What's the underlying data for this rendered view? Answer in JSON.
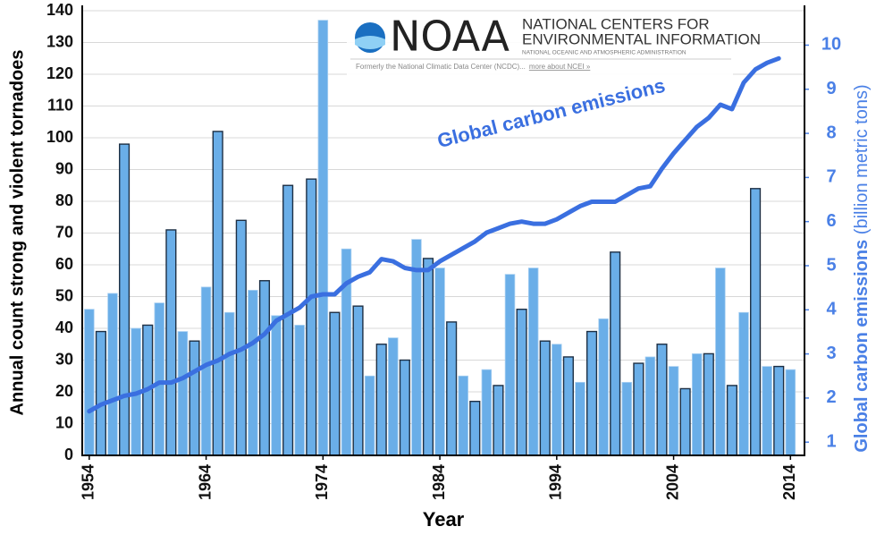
{
  "chart_data": {
    "type": "bar",
    "xlabel": "Year",
    "ylabel": "Annual count strong and violent tornadoes",
    "y2label": "Global carbon emissions",
    "y2unit": "(billion metric tons)",
    "logo": {
      "name": "NOAA",
      "line1": "NATIONAL CENTERS FOR",
      "line2": "ENVIRONMENTAL INFORMATION",
      "line3": "NATIONAL OCEANIC AND ATMOSPHERIC ADMINISTRATION",
      "note": "Formerly the National Climatic Data Center (NCDC)...",
      "link": "more about NCEI »"
    },
    "x": [
      1954,
      1955,
      1956,
      1957,
      1958,
      1959,
      1960,
      1961,
      1962,
      1963,
      1964,
      1965,
      1966,
      1967,
      1968,
      1969,
      1970,
      1971,
      1972,
      1973,
      1974,
      1975,
      1976,
      1977,
      1978,
      1979,
      1980,
      1981,
      1982,
      1983,
      1984,
      1985,
      1986,
      1987,
      1988,
      1989,
      1990,
      1991,
      1992,
      1993,
      1994,
      1995,
      1996,
      1997,
      1998,
      1999,
      2000,
      2001,
      2002,
      2003,
      2004,
      2005,
      2006,
      2007,
      2008,
      2009,
      2010,
      2011,
      2012,
      2013,
      2014
    ],
    "series": [
      {
        "color": "#6aaee8",
        "values": [
          46,
          39,
          51,
          98,
          40,
          41,
          48,
          71,
          39,
          36,
          53,
          102,
          45,
          74,
          52,
          55,
          44,
          85,
          41,
          87,
          137,
          45,
          65,
          47,
          25,
          35,
          37,
          30,
          68,
          62,
          59,
          42,
          25,
          17,
          27,
          22,
          57,
          46,
          59,
          36,
          35,
          31,
          23,
          39,
          43,
          64,
          23,
          29,
          31,
          35,
          28,
          21,
          32,
          32,
          59,
          22,
          45,
          84,
          28,
          28,
          27
        ]
      },
      {
        "name": "Global carbon emissions",
        "type": "line",
        "axis": "y2",
        "color": "#3a6fe0",
        "values": [
          1.7,
          1.85,
          1.95,
          2.05,
          2.1,
          2.2,
          2.35,
          2.35,
          2.45,
          2.6,
          2.75,
          2.85,
          3.0,
          3.1,
          3.25,
          3.45,
          3.75,
          3.9,
          4.05,
          4.3,
          4.35,
          4.35,
          4.6,
          4.75,
          4.85,
          5.15,
          5.1,
          4.95,
          4.9,
          4.9,
          5.1,
          5.25,
          5.4,
          5.55,
          5.75,
          5.85,
          5.95,
          6.0,
          5.95,
          5.95,
          6.05,
          6.2,
          6.35,
          6.45,
          6.45,
          6.45,
          6.6,
          6.75,
          6.8,
          7.2,
          7.55,
          7.85,
          8.15,
          8.35,
          8.65,
          8.55,
          9.15,
          9.45,
          9.6,
          9.7,
          null
        ]
      }
    ],
    "xlim": [
      1953.4,
      2015.2
    ],
    "xticks": [
      1954,
      1964,
      1974,
      1984,
      1994,
      2004,
      2014
    ],
    "ylim": [
      0,
      140
    ],
    "yticks": [
      0,
      10,
      20,
      30,
      40,
      50,
      60,
      70,
      80,
      90,
      100,
      110,
      120,
      130,
      140
    ],
    "y2lim": [
      0.7,
      10.78
    ],
    "y2ticks": [
      1,
      2,
      3,
      4,
      5,
      6,
      7,
      8,
      9,
      10
    ],
    "grid": true
  }
}
